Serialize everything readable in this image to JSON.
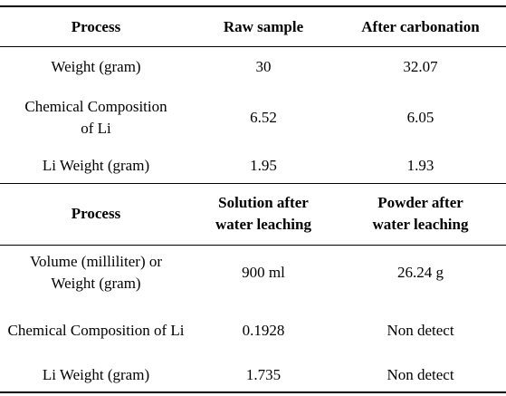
{
  "section1": {
    "header": [
      "Process",
      "Raw sample",
      "After carbonation"
    ],
    "rows": [
      [
        "Weight (gram)",
        "30",
        "32.07"
      ],
      [
        "Chemical Composition of Li",
        "6.52",
        "6.05"
      ],
      [
        "Li Weight (gram)",
        "1.95",
        "1.93"
      ]
    ]
  },
  "section2": {
    "header": [
      "Process",
      "Solution after water leaching",
      "Powder after water leaching"
    ],
    "rows": [
      [
        "Volume (milliliter) or Weight (gram)",
        "900 ml",
        "26.24 g"
      ],
      [
        "Chemical Composition of Li",
        "0.1928",
        "Non detect"
      ],
      [
        "Li Weight (gram)",
        "1.735",
        "Non detect"
      ]
    ]
  }
}
